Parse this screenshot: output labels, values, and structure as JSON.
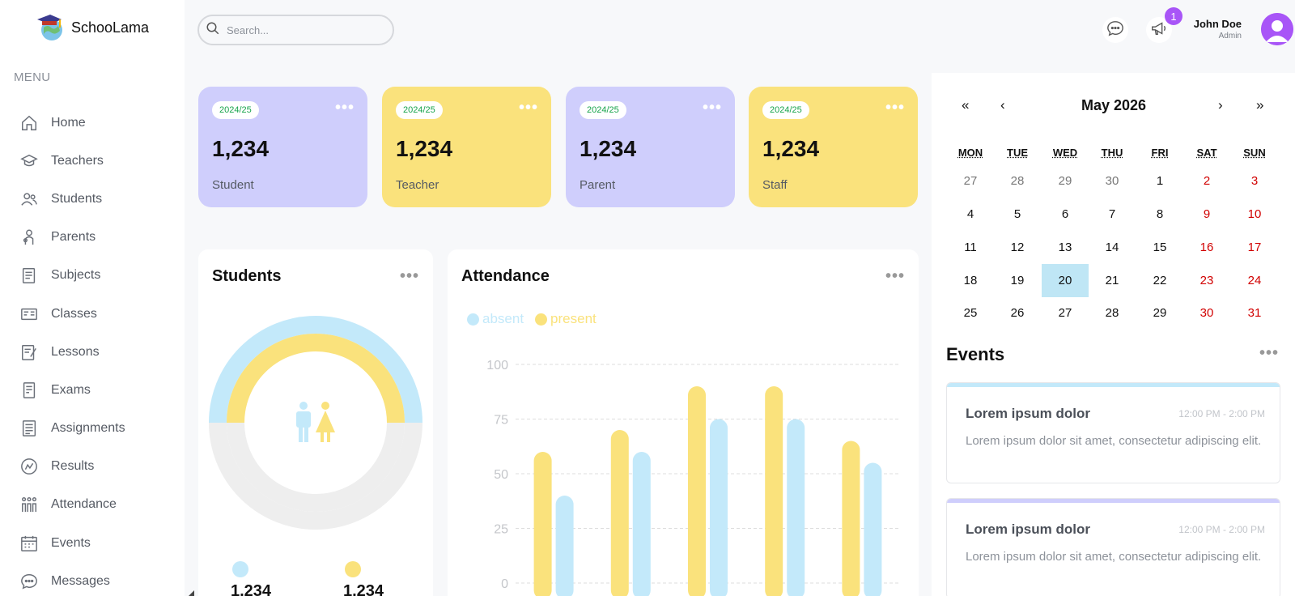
{
  "app": {
    "name": "SchooLama"
  },
  "menu": {
    "title": "MENU",
    "items": [
      {
        "label": "Home",
        "icon": "home-icon"
      },
      {
        "label": "Teachers",
        "icon": "graduation-cap-icon"
      },
      {
        "label": "Students",
        "icon": "students-icon"
      },
      {
        "label": "Parents",
        "icon": "parents-icon"
      },
      {
        "label": "Subjects",
        "icon": "subjects-icon"
      },
      {
        "label": "Classes",
        "icon": "classes-icon"
      },
      {
        "label": "Lessons",
        "icon": "lessons-icon"
      },
      {
        "label": "Exams",
        "icon": "exams-icon"
      },
      {
        "label": "Assignments",
        "icon": "assignments-icon"
      },
      {
        "label": "Results",
        "icon": "results-icon"
      },
      {
        "label": "Attendance",
        "icon": "attendance-icon"
      },
      {
        "label": "Events",
        "icon": "calendar-icon"
      },
      {
        "label": "Messages",
        "icon": "message-icon"
      }
    ]
  },
  "topbar": {
    "search_placeholder": "Search...",
    "notification_count": "1",
    "user_name": "John Doe",
    "user_role": "Admin"
  },
  "cards": [
    {
      "year": "2024/25",
      "value": "1,234",
      "label": "Student",
      "color": "#cfcefc"
    },
    {
      "year": "2024/25",
      "value": "1,234",
      "label": "Teacher",
      "color": "#fae27c"
    },
    {
      "year": "2024/25",
      "value": "1,234",
      "label": "Parent",
      "color": "#cfcefc"
    },
    {
      "year": "2024/25",
      "value": "1,234",
      "label": "Staff",
      "color": "#fae27c"
    }
  ],
  "students_panel": {
    "title": "Students",
    "boys_value": "1,234",
    "girls_value": "1,234",
    "colors": {
      "boys": "#c3e9fa",
      "girls": "#fae27c",
      "track": "#eeeeee"
    }
  },
  "attendance_panel": {
    "title": "Attendance",
    "legend": {
      "absent": "absent",
      "present": "present"
    },
    "colors": {
      "absent": "#c3e9fa",
      "present": "#fae27c"
    }
  },
  "chart_data": {
    "type": "bar",
    "categories": [
      "",
      "",
      "",
      "",
      ""
    ],
    "series": [
      {
        "name": "present",
        "values": [
          60,
          70,
          90,
          90,
          65
        ]
      },
      {
        "name": "absent",
        "values": [
          40,
          60,
          75,
          75,
          55
        ]
      }
    ],
    "yticks": [
      "0",
      "25",
      "50",
      "75",
      "100"
    ],
    "ylim": [
      0,
      100
    ],
    "grid": true,
    "legend_position": "top-left"
  },
  "calendar": {
    "month_title": "May 2026",
    "nav": {
      "prev_year": "«",
      "prev_month": "‹",
      "next_month": "›",
      "next_year": "»"
    },
    "weekdays": [
      "MON",
      "TUE",
      "WED",
      "THU",
      "FRI",
      "SAT",
      "SUN"
    ],
    "weeks": [
      [
        "27",
        "28",
        "29",
        "30",
        "1",
        "2",
        "3"
      ],
      [
        "4",
        "5",
        "6",
        "7",
        "8",
        "9",
        "10"
      ],
      [
        "11",
        "12",
        "13",
        "14",
        "15",
        "16",
        "17"
      ],
      [
        "18",
        "19",
        "20",
        "21",
        "22",
        "23",
        "24"
      ],
      [
        "25",
        "26",
        "27",
        "28",
        "29",
        "30",
        "31"
      ]
    ],
    "today": "20"
  },
  "events": {
    "title": "Events",
    "items": [
      {
        "title": "Lorem ipsum dolor",
        "time": "12:00 PM - 2:00 PM",
        "description": "Lorem ipsum dolor sit amet, consectetur adipiscing elit.",
        "accent": "#c3e9fa"
      },
      {
        "title": "Lorem ipsum dolor",
        "time": "12:00 PM - 2:00 PM",
        "description": "Lorem ipsum dolor sit amet, consectetur adipiscing elit.",
        "accent": "#cfcefc"
      }
    ]
  }
}
